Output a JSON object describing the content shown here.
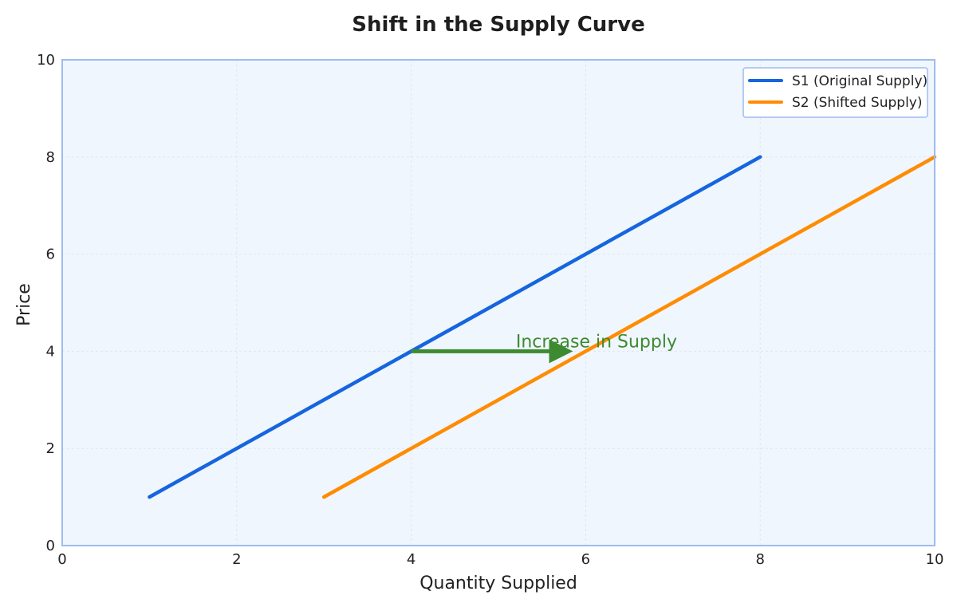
{
  "chart_data": {
    "type": "line",
    "title": "Shift in the Supply Curve",
    "xlabel": "Quantity Supplied",
    "ylabel": "Price",
    "xlim": [
      0,
      10
    ],
    "ylim": [
      0,
      10
    ],
    "xticks": [
      "0",
      "2",
      "4",
      "6",
      "8",
      "10"
    ],
    "yticks": [
      "0",
      "2",
      "4",
      "6",
      "8",
      "10"
    ],
    "grid": true,
    "legend_position": "top-right",
    "series": [
      {
        "name": "S1 (Original Supply)",
        "color": "#1565e0",
        "x": [
          1,
          8
        ],
        "y": [
          1,
          8
        ]
      },
      {
        "name": "S2 (Shifted Supply)",
        "color": "#ff8c00",
        "x": [
          3,
          10
        ],
        "y": [
          1,
          8
        ]
      }
    ],
    "annotation": {
      "text": "Increase in Supply",
      "color": "#3d8a30",
      "arrow_from": [
        4,
        4
      ],
      "arrow_to": [
        6,
        4
      ]
    },
    "colors": {
      "plot_background": "#f0f6fd",
      "frame": "#9dbcf0",
      "grid": "#dde7f5"
    }
  }
}
